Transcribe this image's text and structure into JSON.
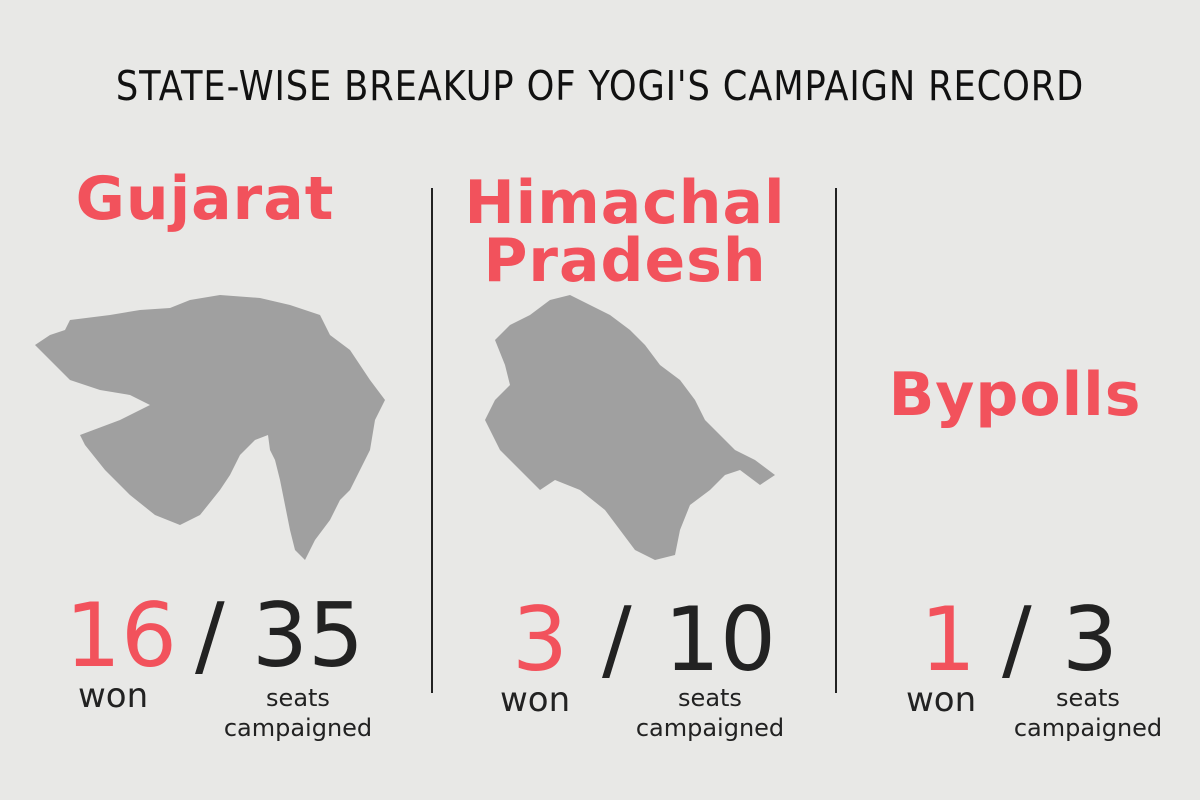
{
  "title": "STATE-WISE BREAKUP OF YOGI'S CAMPAIGN RECORD",
  "colors": {
    "accent": "#f2525c",
    "map": "#a0a0a0",
    "background": "#e8e8e6",
    "text": "#222222"
  },
  "panels": [
    {
      "state": "Gujarat",
      "won": "16",
      "slash": "/",
      "total": "35",
      "won_label": "won",
      "seats_label_1": "seats",
      "seats_label_2": "campaigned"
    },
    {
      "state_line1": "Himachal",
      "state_line2": "Pradesh",
      "won": "3",
      "slash": "/",
      "total": "10",
      "won_label": "won",
      "seats_label_1": "seats",
      "seats_label_2": "campaigned"
    },
    {
      "state": "Bypolls",
      "won": "1",
      "slash": "/",
      "total": "3",
      "won_label": "won",
      "seats_label_1": "seats",
      "seats_label_2": "campaigned"
    }
  ]
}
